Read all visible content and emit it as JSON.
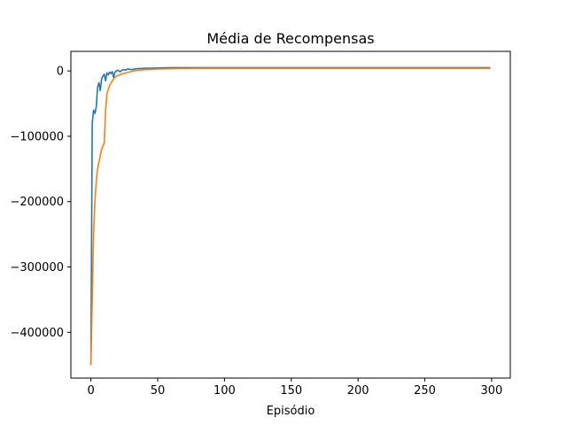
{
  "chart_data": {
    "type": "line",
    "title": "Média de Recompensas",
    "xlabel": "Episódio",
    "ylabel": "",
    "xlim": [
      -15,
      314
    ],
    "ylim": [
      -470000,
      30000
    ],
    "xticks": [
      0,
      50,
      100,
      150,
      200,
      250,
      300
    ],
    "yticks": [
      0,
      -100000,
      -200000,
      -300000,
      -400000
    ],
    "xtick_labels": [
      "0",
      "50",
      "100",
      "150",
      "200",
      "250",
      "300"
    ],
    "ytick_labels": [
      "0",
      "−100000",
      "−200000",
      "−300000",
      "−400000"
    ],
    "grid": false,
    "series": [
      {
        "color": "#1f77b4",
        "x": [
          0,
          1,
          2,
          3,
          4,
          5,
          6,
          7,
          8,
          9,
          10,
          11,
          12,
          13,
          14,
          15,
          16,
          17,
          18,
          19,
          20,
          22,
          24,
          26,
          28,
          30,
          35,
          40,
          50,
          60,
          80,
          100,
          150,
          200,
          250,
          299
        ],
        "y": [
          -450000,
          -80000,
          -60000,
          -65000,
          -55000,
          -25000,
          -18000,
          -30000,
          -12000,
          -8000,
          -5000,
          -15000,
          -3000,
          -6000,
          -2000,
          -4000,
          -1000,
          -10000,
          -2000,
          0,
          1000,
          -1000,
          2000,
          1500,
          3000,
          2000,
          3500,
          4000,
          4500,
          5000,
          5000,
          5000,
          5000,
          5000,
          5000,
          5000
        ]
      },
      {
        "color": "#ff7f0e",
        "x": [
          0,
          1,
          2,
          3,
          4,
          5,
          6,
          7,
          8,
          9,
          10,
          11,
          12,
          14,
          16,
          18,
          20,
          24,
          28,
          32,
          40,
          50,
          60,
          80,
          100,
          150,
          200,
          250,
          299
        ],
        "y": [
          -450000,
          -350000,
          -250000,
          -200000,
          -170000,
          -150000,
          -140000,
          -130000,
          -120000,
          -115000,
          -110000,
          -60000,
          -35000,
          -22000,
          -15000,
          -10000,
          -7000,
          -4000,
          -2000,
          0,
          2000,
          3000,
          3500,
          4000,
          4000,
          4000,
          4000,
          4000,
          4000
        ]
      }
    ]
  }
}
